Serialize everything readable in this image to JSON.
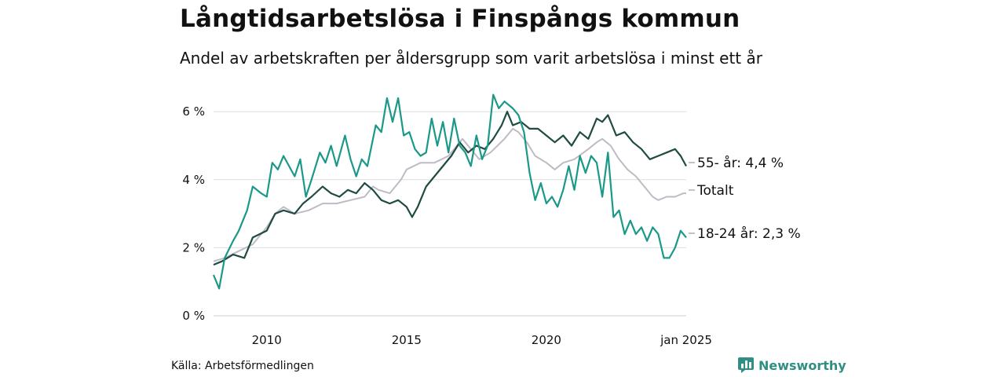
{
  "chart_data": {
    "type": "line",
    "title": "Långtidsarbetslösa i Finspångs kommun",
    "subtitle": "Andel av arbetskraften per åldersgrupp som varit arbetslösa i minst ett år",
    "source": "Källa: Arbetsförmedlingen",
    "brand": "Newsworthy",
    "ylim": [
      0,
      6.5
    ],
    "yticks": [
      0,
      2,
      4,
      6
    ],
    "ytick_labels": [
      "0 %",
      "2 %",
      "4 %",
      "6 %"
    ],
    "xlim": [
      2008.1,
      2025.0
    ],
    "xticks": [
      2010,
      2015,
      2020,
      2025
    ],
    "xtick_labels": [
      "2010",
      "2015",
      "2020",
      "jan 2025"
    ],
    "series": [
      {
        "name": "Totalt",
        "label": "Totalt",
        "color": "#bfbbc6",
        "points": [
          [
            2008.1,
            1.6
          ],
          [
            2008.5,
            1.7
          ],
          [
            2009.0,
            1.9
          ],
          [
            2009.5,
            2.1
          ],
          [
            2010.0,
            2.6
          ],
          [
            2010.3,
            3.0
          ],
          [
            2010.6,
            3.2
          ],
          [
            2011.0,
            3.0
          ],
          [
            2011.5,
            3.1
          ],
          [
            2012.0,
            3.3
          ],
          [
            2012.5,
            3.3
          ],
          [
            2013.0,
            3.4
          ],
          [
            2013.5,
            3.5
          ],
          [
            2013.8,
            3.8
          ],
          [
            2014.0,
            3.7
          ],
          [
            2014.4,
            3.6
          ],
          [
            2014.8,
            4.0
          ],
          [
            2015.0,
            4.3
          ],
          [
            2015.5,
            4.5
          ],
          [
            2016.0,
            4.5
          ],
          [
            2016.5,
            4.7
          ],
          [
            2016.8,
            5.0
          ],
          [
            2017.0,
            5.2
          ],
          [
            2017.3,
            4.9
          ],
          [
            2017.6,
            4.6
          ],
          [
            2018.0,
            4.8
          ],
          [
            2018.5,
            5.2
          ],
          [
            2018.8,
            5.5
          ],
          [
            2019.0,
            5.4
          ],
          [
            2019.3,
            5.1
          ],
          [
            2019.6,
            4.7
          ],
          [
            2020.0,
            4.5
          ],
          [
            2020.3,
            4.3
          ],
          [
            2020.6,
            4.5
          ],
          [
            2021.0,
            4.6
          ],
          [
            2021.5,
            4.9
          ],
          [
            2021.8,
            5.1
          ],
          [
            2022.0,
            5.2
          ],
          [
            2022.3,
            5.0
          ],
          [
            2022.6,
            4.6
          ],
          [
            2022.9,
            4.3
          ],
          [
            2023.2,
            4.1
          ],
          [
            2023.5,
            3.8
          ],
          [
            2023.8,
            3.5
          ],
          [
            2024.0,
            3.4
          ],
          [
            2024.3,
            3.5
          ],
          [
            2024.6,
            3.5
          ],
          [
            2024.9,
            3.6
          ],
          [
            2025.0,
            3.6
          ]
        ]
      },
      {
        "name": "55- år",
        "label": "55- år: 4,4 %",
        "color": "#1f4b43",
        "points": [
          [
            2008.1,
            1.5
          ],
          [
            2008.4,
            1.6
          ],
          [
            2008.8,
            1.8
          ],
          [
            2009.2,
            1.7
          ],
          [
            2009.5,
            2.3
          ],
          [
            2010.0,
            2.5
          ],
          [
            2010.3,
            3.0
          ],
          [
            2010.6,
            3.1
          ],
          [
            2011.0,
            3.0
          ],
          [
            2011.3,
            3.3
          ],
          [
            2011.6,
            3.5
          ],
          [
            2012.0,
            3.8
          ],
          [
            2012.3,
            3.6
          ],
          [
            2012.6,
            3.5
          ],
          [
            2012.9,
            3.7
          ],
          [
            2013.2,
            3.6
          ],
          [
            2013.5,
            3.9
          ],
          [
            2013.8,
            3.7
          ],
          [
            2014.1,
            3.4
          ],
          [
            2014.4,
            3.3
          ],
          [
            2014.7,
            3.4
          ],
          [
            2015.0,
            3.2
          ],
          [
            2015.2,
            2.9
          ],
          [
            2015.4,
            3.2
          ],
          [
            2015.7,
            3.8
          ],
          [
            2016.0,
            4.1
          ],
          [
            2016.3,
            4.4
          ],
          [
            2016.6,
            4.7
          ],
          [
            2016.9,
            5.1
          ],
          [
            2017.2,
            4.8
          ],
          [
            2017.5,
            5.0
          ],
          [
            2017.8,
            4.9
          ],
          [
            2018.1,
            5.2
          ],
          [
            2018.4,
            5.6
          ],
          [
            2018.6,
            6.0
          ],
          [
            2018.8,
            5.6
          ],
          [
            2019.1,
            5.7
          ],
          [
            2019.4,
            5.5
          ],
          [
            2019.7,
            5.5
          ],
          [
            2020.0,
            5.3
          ],
          [
            2020.3,
            5.1
          ],
          [
            2020.6,
            5.3
          ],
          [
            2020.9,
            5.0
          ],
          [
            2021.2,
            5.4
          ],
          [
            2021.5,
            5.2
          ],
          [
            2021.8,
            5.8
          ],
          [
            2022.0,
            5.7
          ],
          [
            2022.2,
            5.9
          ],
          [
            2022.5,
            5.3
          ],
          [
            2022.8,
            5.4
          ],
          [
            2023.1,
            5.1
          ],
          [
            2023.4,
            4.9
          ],
          [
            2023.7,
            4.6
          ],
          [
            2024.0,
            4.7
          ],
          [
            2024.3,
            4.8
          ],
          [
            2024.6,
            4.9
          ],
          [
            2024.8,
            4.7
          ],
          [
            2025.0,
            4.4
          ]
        ]
      },
      {
        "name": "18-24 år",
        "label": "18-24 år: 2,3 %",
        "color": "#1a9988",
        "points": [
          [
            2008.1,
            1.2
          ],
          [
            2008.3,
            0.8
          ],
          [
            2008.5,
            1.7
          ],
          [
            2008.8,
            2.2
          ],
          [
            2009.0,
            2.5
          ],
          [
            2009.3,
            3.1
          ],
          [
            2009.5,
            3.8
          ],
          [
            2009.8,
            3.6
          ],
          [
            2010.0,
            3.5
          ],
          [
            2010.2,
            4.5
          ],
          [
            2010.4,
            4.3
          ],
          [
            2010.6,
            4.7
          ],
          [
            2010.8,
            4.4
          ],
          [
            2011.0,
            4.1
          ],
          [
            2011.2,
            4.6
          ],
          [
            2011.4,
            3.5
          ],
          [
            2011.6,
            4.0
          ],
          [
            2011.9,
            4.8
          ],
          [
            2012.1,
            4.5
          ],
          [
            2012.3,
            5.0
          ],
          [
            2012.5,
            4.4
          ],
          [
            2012.8,
            5.3
          ],
          [
            2013.0,
            4.6
          ],
          [
            2013.2,
            4.1
          ],
          [
            2013.4,
            4.6
          ],
          [
            2013.6,
            4.4
          ],
          [
            2013.9,
            5.6
          ],
          [
            2014.1,
            5.4
          ],
          [
            2014.3,
            6.4
          ],
          [
            2014.5,
            5.7
          ],
          [
            2014.7,
            6.4
          ],
          [
            2014.9,
            5.3
          ],
          [
            2015.1,
            5.4
          ],
          [
            2015.3,
            4.9
          ],
          [
            2015.5,
            4.7
          ],
          [
            2015.7,
            4.8
          ],
          [
            2015.9,
            5.8
          ],
          [
            2016.1,
            5.0
          ],
          [
            2016.3,
            5.7
          ],
          [
            2016.5,
            4.8
          ],
          [
            2016.7,
            5.8
          ],
          [
            2016.9,
            5.0
          ],
          [
            2017.1,
            4.8
          ],
          [
            2017.3,
            4.4
          ],
          [
            2017.5,
            5.3
          ],
          [
            2017.7,
            4.6
          ],
          [
            2017.9,
            5.0
          ],
          [
            2018.1,
            6.5
          ],
          [
            2018.3,
            6.1
          ],
          [
            2018.5,
            6.3
          ],
          [
            2018.8,
            6.1
          ],
          [
            2019.0,
            5.9
          ],
          [
            2019.2,
            5.4
          ],
          [
            2019.4,
            4.2
          ],
          [
            2019.6,
            3.4
          ],
          [
            2019.8,
            3.9
          ],
          [
            2020.0,
            3.3
          ],
          [
            2020.2,
            3.5
          ],
          [
            2020.4,
            3.2
          ],
          [
            2020.6,
            3.7
          ],
          [
            2020.8,
            4.4
          ],
          [
            2021.0,
            3.7
          ],
          [
            2021.2,
            4.7
          ],
          [
            2021.4,
            4.2
          ],
          [
            2021.6,
            4.7
          ],
          [
            2021.8,
            4.5
          ],
          [
            2022.0,
            3.5
          ],
          [
            2022.2,
            4.8
          ],
          [
            2022.4,
            2.9
          ],
          [
            2022.6,
            3.1
          ],
          [
            2022.8,
            2.4
          ],
          [
            2023.0,
            2.8
          ],
          [
            2023.2,
            2.4
          ],
          [
            2023.4,
            2.6
          ],
          [
            2023.6,
            2.2
          ],
          [
            2023.8,
            2.6
          ],
          [
            2024.0,
            2.4
          ],
          [
            2024.2,
            1.7
          ],
          [
            2024.4,
            1.7
          ],
          [
            2024.6,
            2.0
          ],
          [
            2024.8,
            2.5
          ],
          [
            2025.0,
            2.3
          ]
        ]
      }
    ]
  }
}
